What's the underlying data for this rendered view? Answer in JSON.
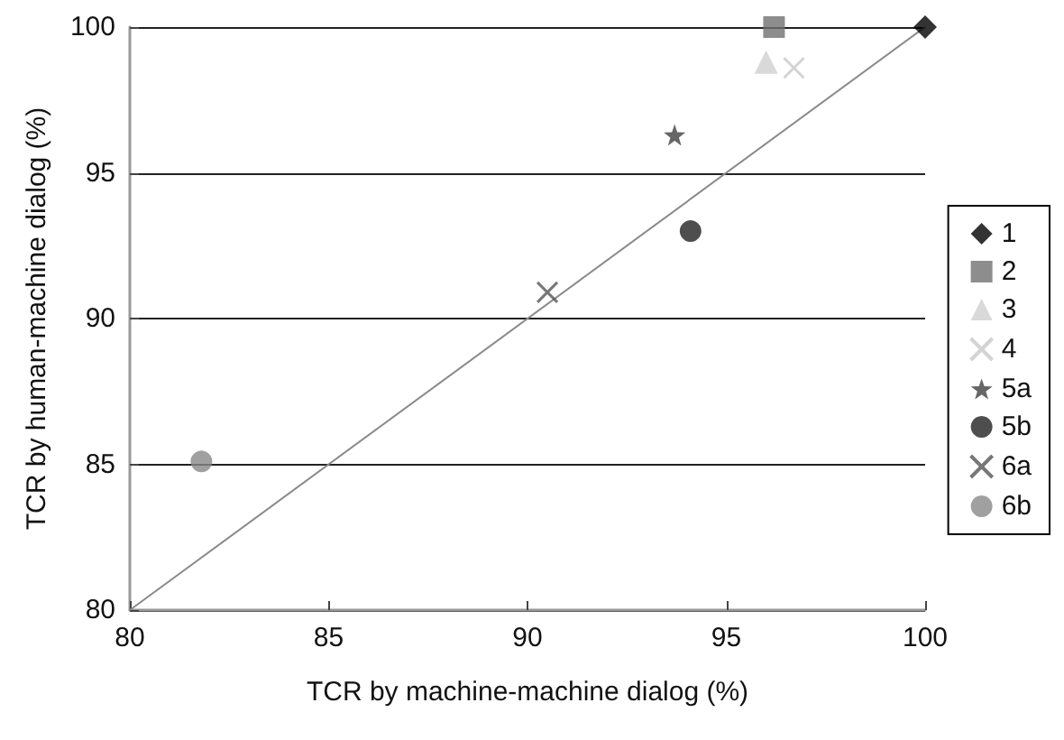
{
  "chart_data": {
    "type": "scatter",
    "xlabel": "TCR by machine-machine dialog (%)",
    "ylabel": "TCR by human-machine dialog (%)",
    "xlim": [
      80,
      100
    ],
    "xticks": [
      80,
      85,
      90,
      95,
      100
    ],
    "ylim": [
      80,
      100
    ],
    "yticks": [
      80,
      85,
      90,
      95,
      100
    ],
    "grid": "y",
    "legend": "right",
    "series": [
      {
        "name": "1",
        "color": "#000000",
        "marker": "diamond",
        "x": [
          100
        ],
        "values": [
          100
        ]
      },
      {
        "name": "2",
        "color": "#707070",
        "marker": "square",
        "x": [
          96.2
        ],
        "values": [
          100
        ]
      },
      {
        "name": "3",
        "color": "#d0d0d0",
        "marker": "triangle",
        "x": [
          96.0
        ],
        "values": [
          98.8
        ]
      },
      {
        "name": "4",
        "color": "#c8c8c8",
        "marker": "cross",
        "x": [
          96.7
        ],
        "values": [
          98.6
        ]
      },
      {
        "name": "5a",
        "color": "#404040",
        "marker": "star",
        "x": [
          93.7
        ],
        "values": [
          96.3
        ]
      },
      {
        "name": "5b",
        "color": "#222222",
        "marker": "circle",
        "x": [
          94.1
        ],
        "values": [
          93.0
        ]
      },
      {
        "name": "6a",
        "color": "#555555",
        "marker": "cross",
        "x": [
          90.5
        ],
        "values": [
          90.9
        ]
      },
      {
        "name": "6b",
        "color": "#888888",
        "marker": "circle",
        "x": [
          81.8
        ],
        "values": [
          85.1
        ]
      },
      {
        "type": "line",
        "color": "#8a8a8a",
        "marker": "none",
        "x": [
          80,
          100
        ],
        "values": [
          80,
          100
        ]
      }
    ]
  }
}
